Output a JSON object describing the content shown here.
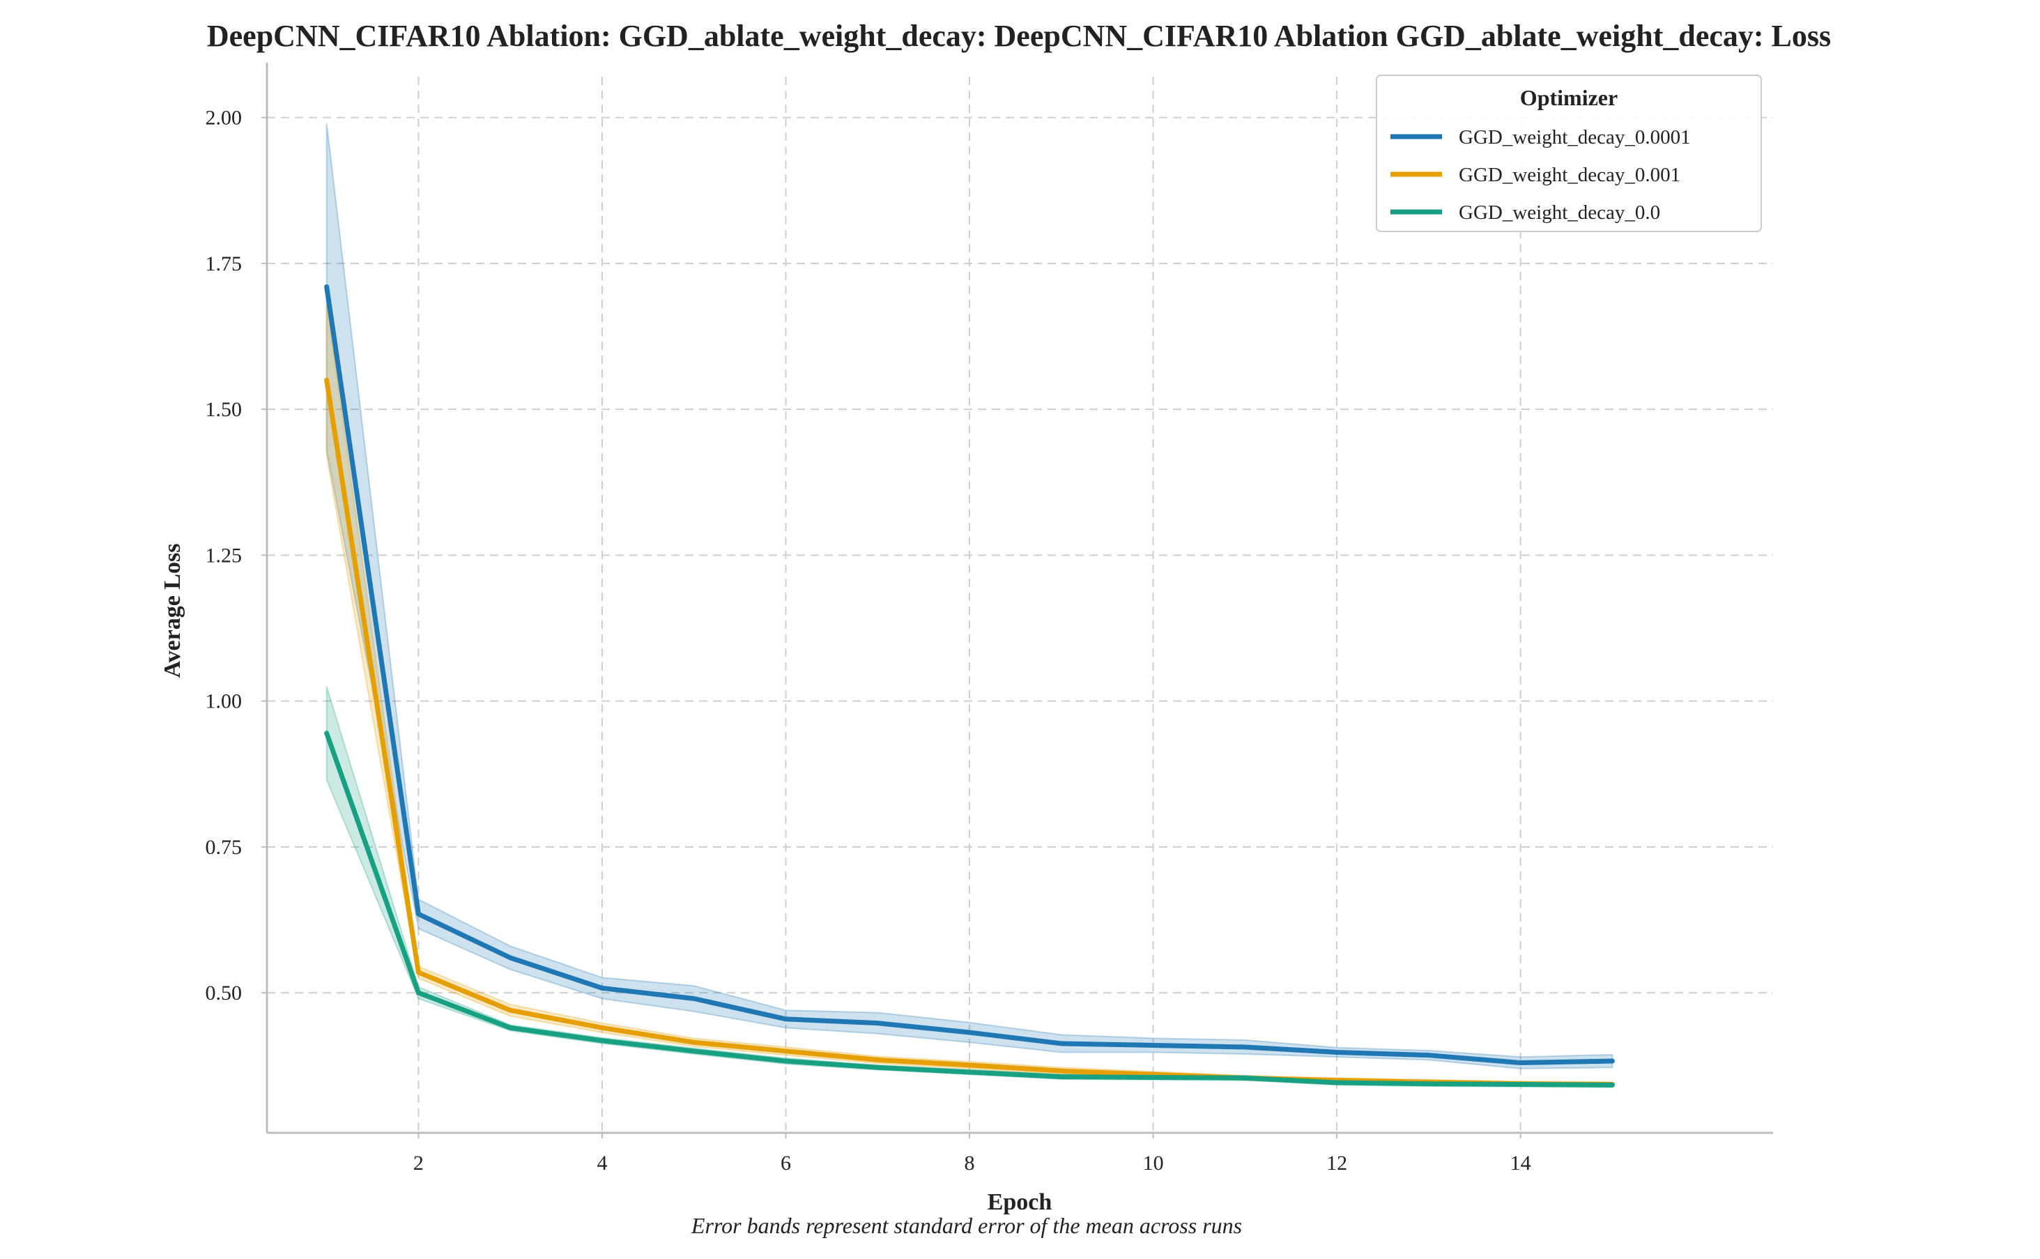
{
  "chart_data": {
    "type": "line",
    "title": "DeepCNN_CIFAR10 Ablation: GGD_ablate_weight_decay: DeepCNN_CIFAR10 Ablation GGD_ablate_weight_decay: Loss",
    "xlabel": "Epoch",
    "ylabel": "Average Loss",
    "caption": "Error bands represent standard error of the mean across runs",
    "xlim": [
      0.35,
      16.75
    ],
    "ylim": [
      0.26,
      2.07
    ],
    "x_ticks": [
      2,
      4,
      6,
      8,
      10,
      12,
      14
    ],
    "x_tick_labels": [
      "2",
      "4",
      "6",
      "8",
      "10",
      "12",
      "14"
    ],
    "y_ticks": [
      0.5,
      0.75,
      1.0,
      1.25,
      1.5,
      1.75,
      2.0
    ],
    "y_tick_labels": [
      "0.50",
      "0.75",
      "1.00",
      "1.25",
      "1.50",
      "1.75",
      "2.00"
    ],
    "grid": true,
    "legend": {
      "title": "Optimizer",
      "placement": "top-right"
    },
    "x": [
      1,
      2,
      3,
      4,
      5,
      6,
      7,
      8,
      9,
      10,
      11,
      12,
      13,
      14,
      15
    ],
    "series": [
      {
        "name": "GGD_weight_decay_0.0001",
        "color": "#1f77b4",
        "values": [
          1.71,
          0.635,
          0.56,
          0.508,
          0.49,
          0.455,
          0.448,
          0.432,
          0.413,
          0.41,
          0.407,
          0.398,
          0.393,
          0.38,
          0.383
        ],
        "lower": [
          1.43,
          0.61,
          0.54,
          0.49,
          0.468,
          0.44,
          0.43,
          0.415,
          0.398,
          0.398,
          0.395,
          0.39,
          0.385,
          0.37,
          0.372
        ],
        "upper": [
          1.99,
          0.66,
          0.58,
          0.526,
          0.512,
          0.47,
          0.466,
          0.449,
          0.428,
          0.422,
          0.419,
          0.406,
          0.401,
          0.39,
          0.394
        ]
      },
      {
        "name": "GGD_weight_decay_0.001",
        "color": "#e69f00",
        "values": [
          1.55,
          0.535,
          0.47,
          0.44,
          0.415,
          0.4,
          0.385,
          0.376,
          0.366,
          0.36,
          0.354,
          0.35,
          0.347,
          0.344,
          0.343
        ],
        "lower": [
          1.42,
          0.525,
          0.46,
          0.432,
          0.408,
          0.393,
          0.379,
          0.37,
          0.36,
          0.355,
          0.35,
          0.346,
          0.343,
          0.34,
          0.339
        ],
        "upper": [
          1.68,
          0.545,
          0.48,
          0.448,
          0.422,
          0.407,
          0.391,
          0.382,
          0.372,
          0.365,
          0.358,
          0.354,
          0.351,
          0.348,
          0.347
        ]
      },
      {
        "name": "GGD_weight_decay_0.0",
        "color": "#17a082",
        "values": [
          0.945,
          0.5,
          0.44,
          0.418,
          0.4,
          0.383,
          0.372,
          0.364,
          0.356,
          0.355,
          0.354,
          0.346,
          0.344,
          0.343,
          0.342
        ],
        "lower": [
          0.865,
          0.49,
          0.435,
          0.413,
          0.395,
          0.378,
          0.368,
          0.36,
          0.352,
          0.351,
          0.35,
          0.342,
          0.34,
          0.339,
          0.338
        ],
        "upper": [
          1.025,
          0.51,
          0.445,
          0.423,
          0.405,
          0.388,
          0.376,
          0.368,
          0.36,
          0.359,
          0.358,
          0.35,
          0.348,
          0.347,
          0.346
        ]
      }
    ]
  }
}
